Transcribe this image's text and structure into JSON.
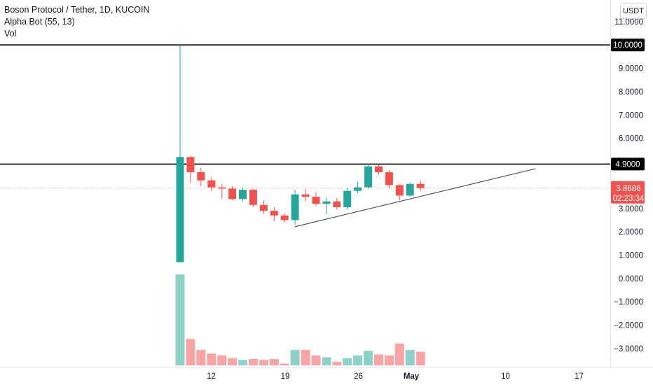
{
  "legend": {
    "title": "Boson Protocol / Tether, 1D, KUCOIN",
    "indicator": "Alpha Bot (55, 13)",
    "volume": "Vol"
  },
  "currency": "USDT",
  "colors": {
    "up": "#26a69a",
    "down": "#ef5350",
    "volume_up": "#8fd0c8",
    "volume_down": "#f6a5a4",
    "hline": "#000000",
    "trendline": "#434651",
    "last_price_line": "#f7b5b4"
  },
  "chart_data": {
    "type": "candlestick",
    "symbol": "Boson Protocol / Tether",
    "interval": "1D",
    "exchange": "KUCOIN",
    "x_ticks": [
      "12",
      "19",
      "26",
      "May",
      "10",
      "17"
    ],
    "y_ticks": [
      "11.0000",
      "9.0000",
      "8.0000",
      "7.0000",
      "6.0000",
      "3.0000",
      "2.0000",
      "1.0000",
      "0.0000",
      "−1.0000",
      "−2.0000",
      "−3.0000"
    ],
    "ylim": [
      -3.6,
      11.6
    ],
    "horizontal_lines": [
      {
        "price": 10.0,
        "label": "10.0000"
      },
      {
        "price": 4.9,
        "label": "4.9000"
      }
    ],
    "last_price": {
      "price": 3.8686,
      "label": "3.8686",
      "countdown": "02:23:34"
    },
    "trendline": {
      "start": {
        "date": "Apr 20",
        "price": 2.22
      },
      "end": {
        "date": "May 13",
        "price": 4.7
      }
    },
    "candles": [
      {
        "date": "Apr 9",
        "open": 0.7,
        "high": 10.0,
        "low": 0.7,
        "close": 5.2
      },
      {
        "date": "Apr 10",
        "open": 5.2,
        "high": 5.25,
        "low": 4.1,
        "close": 4.55
      },
      {
        "date": "Apr 11",
        "open": 4.55,
        "high": 4.75,
        "low": 3.95,
        "close": 4.2
      },
      {
        "date": "Apr 12",
        "open": 4.2,
        "high": 4.35,
        "low": 3.75,
        "close": 3.9
      },
      {
        "date": "Apr 13",
        "open": 3.9,
        "high": 4.05,
        "low": 3.4,
        "close": 3.85
      },
      {
        "date": "Apr 14",
        "open": 3.85,
        "high": 3.95,
        "low": 3.35,
        "close": 3.4
      },
      {
        "date": "Apr 15",
        "open": 3.4,
        "high": 3.9,
        "low": 3.3,
        "close": 3.8
      },
      {
        "date": "Apr 16",
        "open": 3.8,
        "high": 3.85,
        "low": 3.05,
        "close": 3.15
      },
      {
        "date": "Apr 17",
        "open": 3.15,
        "high": 3.35,
        "low": 2.75,
        "close": 2.9
      },
      {
        "date": "Apr 18",
        "open": 2.9,
        "high": 3.05,
        "low": 2.45,
        "close": 2.7
      },
      {
        "date": "Apr 19",
        "open": 2.7,
        "high": 2.8,
        "low": 2.4,
        "close": 2.5
      },
      {
        "date": "Apr 20",
        "open": 2.5,
        "high": 3.8,
        "low": 2.3,
        "close": 3.6
      },
      {
        "date": "Apr 21",
        "open": 3.6,
        "high": 3.85,
        "low": 3.3,
        "close": 3.5
      },
      {
        "date": "Apr 22",
        "open": 3.5,
        "high": 3.7,
        "low": 3.1,
        "close": 3.2
      },
      {
        "date": "Apr 23",
        "open": 3.2,
        "high": 3.45,
        "low": 2.75,
        "close": 3.3
      },
      {
        "date": "Apr 24",
        "open": 3.3,
        "high": 3.45,
        "low": 2.95,
        "close": 3.05
      },
      {
        "date": "Apr 25",
        "open": 3.05,
        "high": 3.9,
        "low": 2.95,
        "close": 3.75
      },
      {
        "date": "Apr 26",
        "open": 3.75,
        "high": 4.15,
        "low": 3.65,
        "close": 3.9
      },
      {
        "date": "Apr 27",
        "open": 3.9,
        "high": 4.9,
        "low": 3.85,
        "close": 4.8
      },
      {
        "date": "Apr 28",
        "open": 4.8,
        "high": 4.9,
        "low": 4.45,
        "close": 4.55
      },
      {
        "date": "Apr 29",
        "open": 4.55,
        "high": 4.65,
        "low": 3.85,
        "close": 4.0
      },
      {
        "date": "Apr 30",
        "open": 4.0,
        "high": 4.05,
        "low": 3.35,
        "close": 3.55
      },
      {
        "date": "May 1",
        "open": 3.55,
        "high": 4.1,
        "low": 3.5,
        "close": 4.05
      },
      {
        "date": "May 2",
        "open": 4.05,
        "high": 4.2,
        "low": 3.75,
        "close": 3.8686
      }
    ],
    "volume": [
      {
        "date": "Apr 9",
        "value": 1.0,
        "direction": "up"
      },
      {
        "date": "Apr 10",
        "value": 0.29,
        "direction": "down"
      },
      {
        "date": "Apr 11",
        "value": 0.17,
        "direction": "down"
      },
      {
        "date": "Apr 12",
        "value": 0.13,
        "direction": "down"
      },
      {
        "date": "Apr 13",
        "value": 0.11,
        "direction": "down"
      },
      {
        "date": "Apr 14",
        "value": 0.08,
        "direction": "down"
      },
      {
        "date": "Apr 15",
        "value": 0.06,
        "direction": "up"
      },
      {
        "date": "Apr 16",
        "value": 0.07,
        "direction": "down"
      },
      {
        "date": "Apr 17",
        "value": 0.06,
        "direction": "down"
      },
      {
        "date": "Apr 18",
        "value": 0.07,
        "direction": "down"
      },
      {
        "date": "Apr 19",
        "value": 0.02,
        "direction": "down"
      },
      {
        "date": "Apr 20",
        "value": 0.17,
        "direction": "up"
      },
      {
        "date": "Apr 21",
        "value": 0.17,
        "direction": "down"
      },
      {
        "date": "Apr 22",
        "value": 0.11,
        "direction": "down"
      },
      {
        "date": "Apr 23",
        "value": 0.09,
        "direction": "up"
      },
      {
        "date": "Apr 24",
        "value": 0.04,
        "direction": "down"
      },
      {
        "date": "Apr 25",
        "value": 0.08,
        "direction": "up"
      },
      {
        "date": "Apr 26",
        "value": 0.11,
        "direction": "up"
      },
      {
        "date": "Apr 27",
        "value": 0.16,
        "direction": "up"
      },
      {
        "date": "Apr 28",
        "value": 0.12,
        "direction": "down"
      },
      {
        "date": "Apr 29",
        "value": 0.11,
        "direction": "down"
      },
      {
        "date": "Apr 30",
        "value": 0.24,
        "direction": "down"
      },
      {
        "date": "May 1",
        "value": 0.17,
        "direction": "up"
      },
      {
        "date": "May 2",
        "value": 0.15,
        "direction": "down"
      }
    ]
  }
}
